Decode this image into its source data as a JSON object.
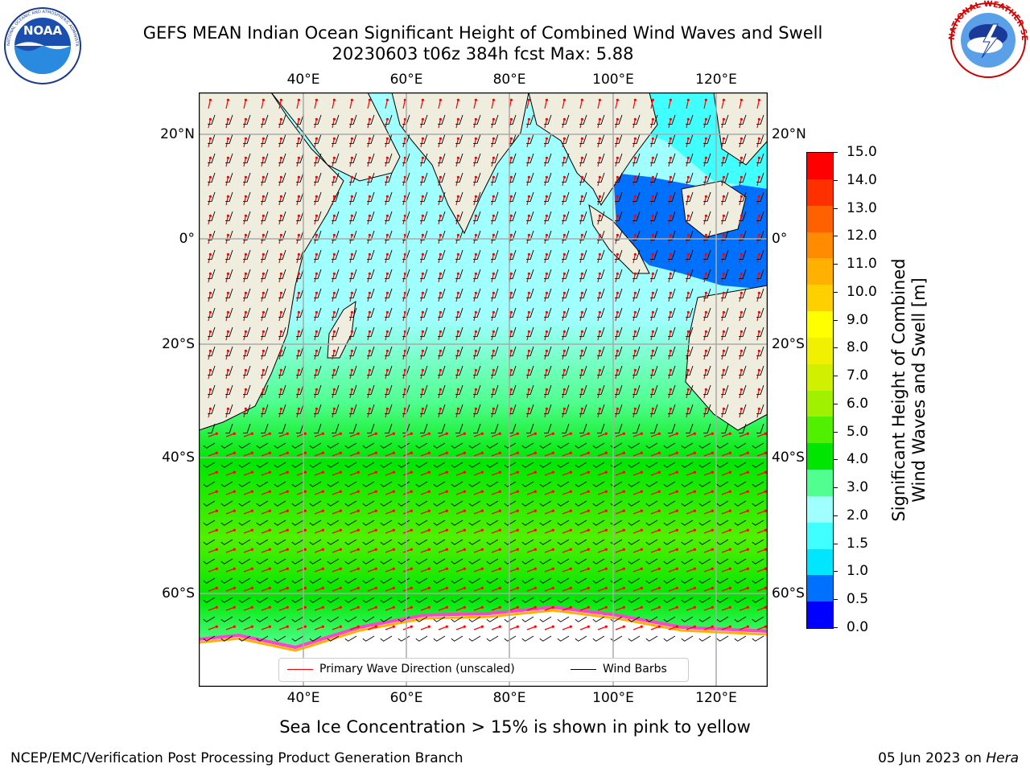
{
  "title": {
    "line1": "GEFS MEAN Indian Ocean Significant Height of Combined Wind Waves and Swell",
    "line2": "20230603 t06z 384h fcst   Max: 5.88"
  },
  "logos": {
    "noaa_text": "NOAA",
    "noaa_ring": "NATIONAL OCEANIC AND ATMOSPHERIC ADMINISTRATION · U.S. DEPARTMENT OF COMMERCE",
    "nws_ring": "NATIONAL WEATHER SERVICE"
  },
  "map": {
    "lon_labels": [
      "40°E",
      "60°E",
      "80°E",
      "100°E",
      "120°E"
    ],
    "lat_labels": [
      "20°N",
      "0°",
      "20°S",
      "40°S",
      "60°S"
    ],
    "extent": {
      "lon": [
        20,
        130
      ],
      "lat": [
        -75,
        27
      ]
    },
    "land_color": "#efedde",
    "sea_ice_color": "#ffffff",
    "legend": {
      "wave_direction": "Primary Wave Direction (unscaled)",
      "wind_barbs": "Wind Barbs",
      "wave_direction_color": "#ff0000",
      "wind_barbs_color": "#000000"
    }
  },
  "colorbar": {
    "title_line1": "Significant Height of Combined",
    "title_line2": "Wind Waves and Swell [m]",
    "ticks": [
      "0.0",
      "0.5",
      "1.0",
      "1.5",
      "2.0",
      "3.0",
      "4.0",
      "5.0",
      "6.0",
      "7.0",
      "8.0",
      "9.0",
      "10.0",
      "11.0",
      "12.0",
      "13.0",
      "14.0",
      "15.0"
    ],
    "colors": [
      "#0000ff",
      "#0070ff",
      "#00e6ff",
      "#40ffff",
      "#a0ffff",
      "#50ff90",
      "#00e600",
      "#50f000",
      "#a0f000",
      "#d0f000",
      "#f0f000",
      "#ffff00",
      "#ffd000",
      "#ffb000",
      "#ff8c00",
      "#ff6000",
      "#ff3000",
      "#ff0000"
    ]
  },
  "sea_ice_note": "Sea Ice Concentration > 15% is shown in pink to yellow",
  "footer": {
    "left": "NCEP/EMC/Verification Post Processing Product Generation Branch",
    "date": "05 Jun 2023 on ",
    "host": "Hera"
  }
}
